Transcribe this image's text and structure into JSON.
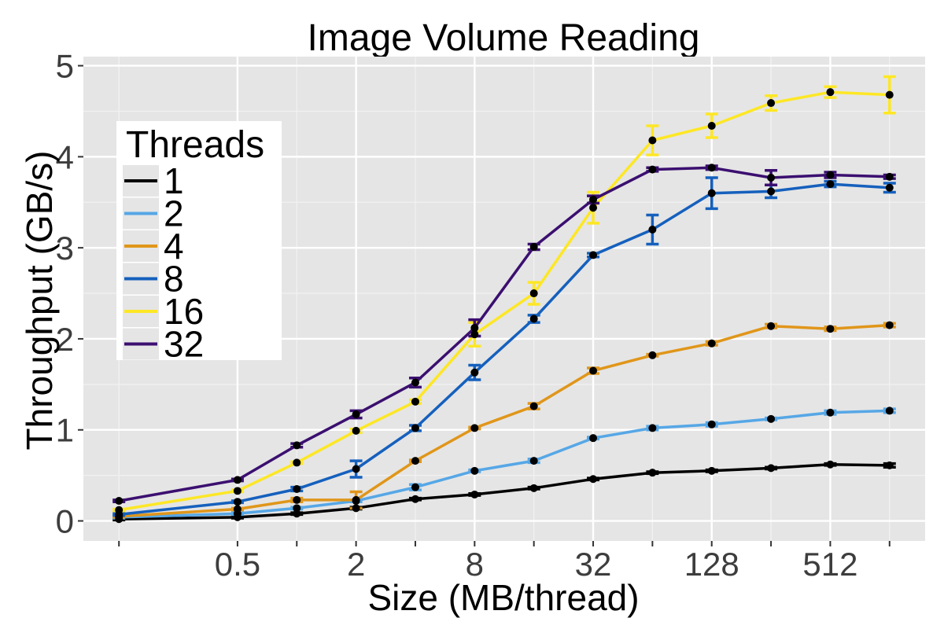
{
  "chart_data": {
    "type": "line",
    "title": "Image Volume Reading",
    "xlabel": "Size (MB/thread)",
    "ylabel": "Throughput (GB/s)",
    "x_scale": "log2",
    "x": [
      0.125,
      0.5,
      1,
      2,
      4,
      8,
      16,
      32,
      64,
      128,
      256,
      512,
      1024
    ],
    "x_tick_labels": [
      "0.5",
      "2",
      "8",
      "32",
      "128",
      "512"
    ],
    "x_tick_values": [
      0.5,
      2,
      8,
      32,
      128,
      512
    ],
    "y_ticks": [
      0,
      1,
      2,
      3,
      4,
      5
    ],
    "ylim": [
      -0.22,
      5.1
    ],
    "grid": true,
    "background": "#e5e5e5",
    "legend": {
      "title": "Threads",
      "placement": "left-center"
    },
    "series": [
      {
        "name": "1",
        "color": "#000000",
        "values": [
          0.02,
          0.04,
          0.08,
          0.14,
          0.24,
          0.29,
          0.36,
          0.46,
          0.53,
          0.55,
          0.58,
          0.62,
          0.61
        ],
        "err": [
          0.01,
          0.01,
          0.01,
          0.01,
          0.01,
          0.01,
          0.01,
          0.01,
          0.01,
          0.01,
          0.01,
          0.01,
          0.02
        ]
      },
      {
        "name": "2",
        "color": "#56a7e6",
        "values": [
          0.04,
          0.08,
          0.14,
          0.22,
          0.37,
          0.55,
          0.66,
          0.91,
          1.02,
          1.06,
          1.12,
          1.19,
          1.21
        ],
        "err": [
          0.01,
          0.01,
          0.01,
          0.01,
          0.03,
          0.01,
          0.02,
          0.01,
          0.02,
          0.02,
          0.01,
          0.02,
          0.02
        ]
      },
      {
        "name": "4",
        "color": "#e0961a",
        "values": [
          0.05,
          0.13,
          0.23,
          0.23,
          0.66,
          1.02,
          1.26,
          1.65,
          1.82,
          1.95,
          2.14,
          2.11,
          2.15
        ],
        "err": [
          0.01,
          0.01,
          0.02,
          0.09,
          0.01,
          0.01,
          0.03,
          0.03,
          0.01,
          0.02,
          0.02,
          0.02,
          0.02
        ]
      },
      {
        "name": "8",
        "color": "#1560bd",
        "values": [
          0.07,
          0.21,
          0.35,
          0.57,
          1.02,
          1.63,
          2.22,
          2.92,
          3.2,
          3.6,
          3.62,
          3.7,
          3.66
        ],
        "err": [
          0.01,
          0.01,
          0.02,
          0.09,
          0.03,
          0.08,
          0.04,
          0.02,
          0.16,
          0.17,
          0.07,
          0.03,
          0.05
        ]
      },
      {
        "name": "16",
        "color": "#fde725",
        "values": [
          0.12,
          0.33,
          0.64,
          0.99,
          1.31,
          2.05,
          2.5,
          3.44,
          4.18,
          4.34,
          4.59,
          4.71,
          4.68
        ],
        "err": [
          0.01,
          0.01,
          0.01,
          0.02,
          0.02,
          0.13,
          0.12,
          0.17,
          0.16,
          0.13,
          0.08,
          0.06,
          0.2
        ]
      },
      {
        "name": "32",
        "color": "#3b0f70",
        "values": [
          0.22,
          0.45,
          0.83,
          1.17,
          1.52,
          2.12,
          3.01,
          3.53,
          3.86,
          3.88,
          3.77,
          3.8,
          3.78
        ],
        "err": [
          0.01,
          0.01,
          0.02,
          0.04,
          0.05,
          0.09,
          0.03,
          0.04,
          0.02,
          0.02,
          0.08,
          0.03,
          0.02
        ]
      }
    ]
  }
}
